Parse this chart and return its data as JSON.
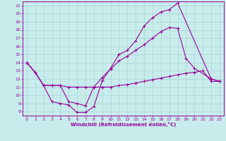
{
  "xlabel": "Windchill (Refroidissement éolien,°C)",
  "bg_color": "#c8ecec",
  "line_color": "#990099",
  "grid_color": "#aad4d4",
  "xlim": [
    -0.5,
    23.5
  ],
  "ylim": [
    7.5,
    21.5
  ],
  "xticks": [
    0,
    1,
    2,
    3,
    4,
    5,
    6,
    7,
    8,
    9,
    10,
    11,
    12,
    13,
    14,
    15,
    16,
    17,
    18,
    19,
    20,
    21,
    22,
    23
  ],
  "yticks": [
    8,
    9,
    10,
    11,
    12,
    13,
    14,
    15,
    16,
    17,
    18,
    19,
    20,
    21
  ],
  "line1_x": [
    0,
    1,
    2,
    3,
    4,
    5,
    6,
    7,
    8,
    9,
    10,
    11,
    12,
    13,
    14,
    15,
    16,
    17,
    18,
    22,
    23
  ],
  "line1_y": [
    14.0,
    12.8,
    11.2,
    9.2,
    9.0,
    8.8,
    7.9,
    7.9,
    8.6,
    11.8,
    13.3,
    15.0,
    15.5,
    16.7,
    18.5,
    19.5,
    20.2,
    20.5,
    21.3,
    12.0,
    11.7
  ],
  "line2_x": [
    0,
    1,
    2,
    3,
    4,
    5,
    6,
    7,
    8,
    9,
    10,
    11,
    12,
    13,
    14,
    15,
    16,
    17,
    18,
    19,
    20,
    22,
    23
  ],
  "line2_y": [
    14.0,
    12.8,
    11.2,
    11.2,
    11.2,
    9.2,
    9.0,
    8.7,
    11.0,
    12.2,
    13.2,
    14.2,
    14.8,
    15.5,
    16.2,
    17.0,
    17.8,
    18.3,
    18.2,
    14.5,
    13.3,
    12.0,
    11.7
  ],
  "line3_x": [
    0,
    1,
    2,
    3,
    4,
    5,
    6,
    7,
    8,
    9,
    10,
    11,
    12,
    13,
    14,
    15,
    16,
    17,
    18,
    19,
    20,
    21,
    22,
    23
  ],
  "line3_y": [
    14.0,
    12.8,
    11.2,
    11.2,
    11.2,
    11.0,
    11.0,
    11.0,
    11.0,
    11.0,
    11.0,
    11.2,
    11.3,
    11.5,
    11.7,
    11.9,
    12.1,
    12.3,
    12.5,
    12.7,
    12.8,
    13.0,
    11.7,
    11.7
  ]
}
